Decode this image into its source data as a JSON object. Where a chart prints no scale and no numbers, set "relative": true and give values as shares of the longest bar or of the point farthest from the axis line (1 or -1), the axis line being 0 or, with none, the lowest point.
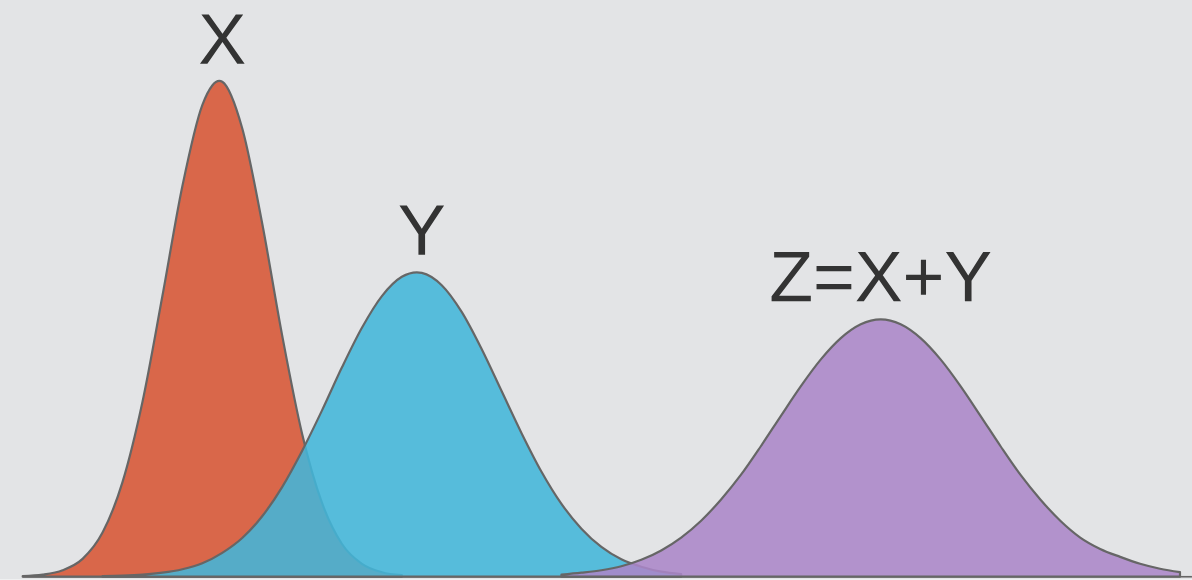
{
  "chart_data": {
    "type": "area",
    "relative": true,
    "categories": [
      null,
      null,
      null,
      null,
      null,
      null,
      null,
      null,
      null,
      null,
      null,
      null,
      null,
      null,
      null,
      null,
      null,
      null,
      null,
      null,
      null,
      null,
      null,
      null,
      null,
      null,
      null,
      null,
      null,
      null,
      null,
      null,
      null,
      null,
      null,
      null,
      null,
      null,
      null,
      null,
      null,
      null,
      null,
      null,
      null,
      null,
      null,
      null,
      null,
      null,
      null,
      null,
      null,
      null,
      null,
      null,
      null,
      null,
      null
    ],
    "series": [
      {
        "name": "X",
        "color": "#d9674a",
        "values": [
          0.001,
          0.004,
          0.013,
          0.036,
          0.089,
          0.191,
          0.353,
          0.567,
          0.789,
          0.953,
          1,
          0.906,
          0.714,
          0.488,
          0.289,
          0.149,
          0.066,
          0.026,
          0.009,
          0.003,
          null,
          null,
          null,
          null,
          null,
          null,
          null,
          null,
          null,
          null,
          null,
          null,
          null,
          null,
          null,
          null,
          null,
          null,
          null,
          null,
          null,
          null,
          null,
          null,
          null,
          null,
          null,
          null,
          null,
          null,
          null,
          null,
          null,
          null,
          null,
          null,
          null,
          null,
          null
        ]
      },
      {
        "name": "Y",
        "color": "#42b6da",
        "values": [
          null,
          null,
          null,
          null,
          0.001,
          0.002,
          0.004,
          0.008,
          0.015,
          0.027,
          0.048,
          0.078,
          0.122,
          0.181,
          0.254,
          0.336,
          0.423,
          0.503,
          0.567,
          0.606,
          0.614,
          0.589,
          0.535,
          0.46,
          0.375,
          0.29,
          0.212,
          0.147,
          0.097,
          0.06,
          0.035,
          0.02,
          0.01,
          0.005,
          null,
          null,
          null,
          null,
          null,
          null,
          null,
          null,
          null,
          null,
          null,
          null,
          null,
          null,
          null,
          null,
          null,
          null,
          null,
          null,
          null,
          null,
          null,
          null,
          null
        ]
      },
      {
        "name": "Z=X+Y",
        "color": "#ab86c8",
        "values": [
          null,
          null,
          null,
          null,
          null,
          null,
          null,
          null,
          null,
          null,
          null,
          null,
          null,
          null,
          null,
          null,
          null,
          null,
          null,
          null,
          null,
          null,
          null,
          null,
          null,
          null,
          null,
          0.004,
          0.008,
          0.013,
          0.021,
          0.034,
          0.053,
          0.079,
          0.113,
          0.156,
          0.206,
          0.264,
          0.325,
          0.385,
          0.439,
          0.482,
          0.51,
          0.52,
          0.51,
          0.482,
          0.439,
          0.385,
          0.325,
          0.264,
          0.206,
          0.156,
          0.113,
          0.079,
          0.056,
          0.04,
          0.026,
          0.016,
          0.009
        ]
      }
    ]
  }
}
